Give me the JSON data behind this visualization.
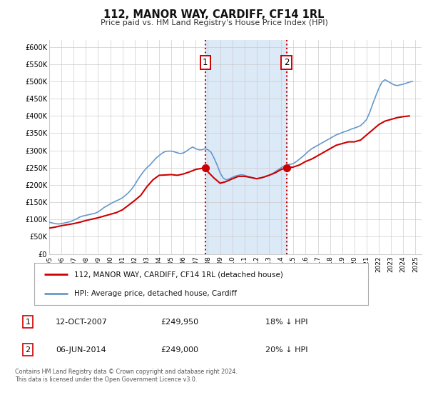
{
  "title": "112, MANOR WAY, CARDIFF, CF14 1RL",
  "subtitle": "Price paid vs. HM Land Registry's House Price Index (HPI)",
  "legend_label_red": "112, MANOR WAY, CARDIFF, CF14 1RL (detached house)",
  "legend_label_blue": "HPI: Average price, detached house, Cardiff",
  "annotation1_date": "12-OCT-2007",
  "annotation1_price": "£249,950",
  "annotation1_hpi": "18% ↓ HPI",
  "annotation2_date": "06-JUN-2014",
  "annotation2_price": "£249,000",
  "annotation2_hpi": "20% ↓ HPI",
  "footer": "Contains HM Land Registry data © Crown copyright and database right 2024.\nThis data is licensed under the Open Government Licence v3.0.",
  "xlim": [
    1995.0,
    2025.5
  ],
  "ylim": [
    0,
    620000
  ],
  "yticks": [
    0,
    50000,
    100000,
    150000,
    200000,
    250000,
    300000,
    350000,
    400000,
    450000,
    500000,
    550000,
    600000
  ],
  "ytick_labels": [
    "£0",
    "£50K",
    "£100K",
    "£150K",
    "£200K",
    "£250K",
    "£300K",
    "£350K",
    "£400K",
    "£450K",
    "£500K",
    "£550K",
    "£600K"
  ],
  "xticks": [
    1995,
    1996,
    1997,
    1998,
    1999,
    2000,
    2001,
    2002,
    2003,
    2004,
    2005,
    2006,
    2007,
    2008,
    2009,
    2010,
    2011,
    2012,
    2013,
    2014,
    2015,
    2016,
    2017,
    2018,
    2019,
    2020,
    2021,
    2022,
    2023,
    2024,
    2025
  ],
  "vline1_x": 2007.78,
  "vline2_x": 2014.43,
  "point1_x": 2007.78,
  "point1_y": 249950,
  "point2_x": 2014.43,
  "point2_y": 249000,
  "shade_color": "#dce9f7",
  "red_color": "#cc0000",
  "blue_color": "#6699cc",
  "bg_color": "#ffffff",
  "grid_color": "#cccccc",
  "hpi_data_x": [
    1995.0,
    1995.25,
    1995.5,
    1995.75,
    1996.0,
    1996.25,
    1996.5,
    1996.75,
    1997.0,
    1997.25,
    1997.5,
    1997.75,
    1998.0,
    1998.25,
    1998.5,
    1998.75,
    1999.0,
    1999.25,
    1999.5,
    1999.75,
    2000.0,
    2000.25,
    2000.5,
    2000.75,
    2001.0,
    2001.25,
    2001.5,
    2001.75,
    2002.0,
    2002.25,
    2002.5,
    2002.75,
    2003.0,
    2003.25,
    2003.5,
    2003.75,
    2004.0,
    2004.25,
    2004.5,
    2004.75,
    2005.0,
    2005.25,
    2005.5,
    2005.75,
    2006.0,
    2006.25,
    2006.5,
    2006.75,
    2007.0,
    2007.25,
    2007.5,
    2007.75,
    2008.0,
    2008.25,
    2008.5,
    2008.75,
    2009.0,
    2009.25,
    2009.5,
    2009.75,
    2010.0,
    2010.25,
    2010.5,
    2010.75,
    2011.0,
    2011.25,
    2011.5,
    2011.75,
    2012.0,
    2012.25,
    2012.5,
    2012.75,
    2013.0,
    2013.25,
    2013.5,
    2013.75,
    2014.0,
    2014.25,
    2014.5,
    2014.75,
    2015.0,
    2015.25,
    2015.5,
    2015.75,
    2016.0,
    2016.25,
    2016.5,
    2016.75,
    2017.0,
    2017.25,
    2017.5,
    2017.75,
    2018.0,
    2018.25,
    2018.5,
    2018.75,
    2019.0,
    2019.25,
    2019.5,
    2019.75,
    2020.0,
    2020.25,
    2020.5,
    2020.75,
    2021.0,
    2021.25,
    2021.5,
    2021.75,
    2022.0,
    2022.25,
    2022.5,
    2022.75,
    2023.0,
    2023.25,
    2023.5,
    2023.75,
    2024.0,
    2024.25,
    2024.5,
    2024.75
  ],
  "hpi_data_y": [
    92000,
    90000,
    88000,
    87000,
    88000,
    90000,
    92000,
    94000,
    98000,
    102000,
    107000,
    110000,
    112000,
    114000,
    116000,
    118000,
    122000,
    128000,
    135000,
    140000,
    145000,
    150000,
    154000,
    158000,
    163000,
    170000,
    178000,
    188000,
    200000,
    215000,
    228000,
    240000,
    250000,
    258000,
    268000,
    278000,
    285000,
    292000,
    297000,
    298000,
    298000,
    296000,
    293000,
    291000,
    293000,
    298000,
    305000,
    310000,
    305000,
    302000,
    302000,
    305000,
    302000,
    295000,
    278000,
    258000,
    235000,
    220000,
    215000,
    218000,
    222000,
    226000,
    228000,
    230000,
    228000,
    225000,
    222000,
    220000,
    218000,
    220000,
    222000,
    225000,
    228000,
    232000,
    238000,
    244000,
    250000,
    255000,
    258000,
    260000,
    262000,
    268000,
    275000,
    282000,
    290000,
    298000,
    305000,
    310000,
    315000,
    320000,
    325000,
    330000,
    335000,
    340000,
    345000,
    348000,
    352000,
    355000,
    358000,
    362000,
    365000,
    368000,
    372000,
    380000,
    390000,
    410000,
    435000,
    458000,
    480000,
    498000,
    505000,
    500000,
    495000,
    490000,
    488000,
    490000,
    492000,
    495000,
    498000,
    500000
  ],
  "red_data_x": [
    1995.0,
    1995.5,
    1996.0,
    1997.0,
    1997.5,
    1998.0,
    1999.0,
    2000.0,
    2000.5,
    2001.0,
    2002.0,
    2002.5,
    2003.0,
    2003.5,
    2004.0,
    2005.0,
    2005.5,
    2006.0,
    2006.5,
    2007.0,
    2007.78,
    2008.0,
    2008.5,
    2009.0,
    2009.5,
    2010.0,
    2010.5,
    2011.0,
    2011.5,
    2012.0,
    2012.5,
    2013.0,
    2013.5,
    2014.0,
    2014.43,
    2015.0,
    2015.5,
    2016.0,
    2016.5,
    2017.0,
    2017.5,
    2018.0,
    2018.5,
    2019.0,
    2019.5,
    2020.0,
    2020.5,
    2021.0,
    2021.5,
    2022.0,
    2022.5,
    2023.0,
    2023.5,
    2024.0,
    2024.5
  ],
  "red_data_y": [
    75000,
    78000,
    82000,
    88000,
    92000,
    97000,
    105000,
    115000,
    120000,
    128000,
    155000,
    170000,
    195000,
    215000,
    228000,
    230000,
    228000,
    232000,
    238000,
    245000,
    249950,
    238000,
    220000,
    205000,
    210000,
    218000,
    225000,
    225000,
    222000,
    218000,
    222000,
    228000,
    235000,
    245000,
    249000,
    252000,
    258000,
    268000,
    275000,
    285000,
    295000,
    305000,
    315000,
    320000,
    325000,
    325000,
    330000,
    345000,
    360000,
    375000,
    385000,
    390000,
    395000,
    398000,
    400000
  ]
}
